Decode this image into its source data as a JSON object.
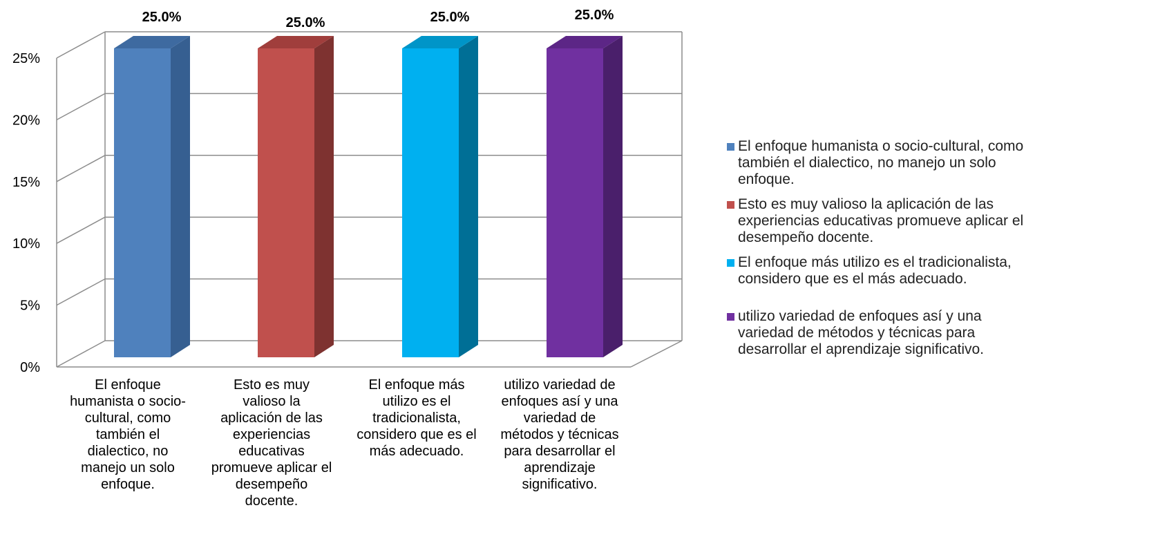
{
  "chart_data": {
    "type": "bar",
    "categories": [
      "El enfoque humanista o socio-cultural, como también el dialectico, no manejo un solo enfoque.",
      "Esto es muy valioso la aplicación de las experiencias educativas promueve aplicar el desempeño docente.",
      "El enfoque más utilizo es el tradicionalista, considero que es el más adecuado.",
      "utilizo variedad de enfoques así y una variedad de métodos y técnicas para desarrollar el aprendizaje significativo."
    ],
    "category_label_lines": [
      [
        "El enfoque",
        "humanista o socio-",
        "cultural, como",
        "también el",
        "dialectico, no",
        "manejo un solo",
        "enfoque."
      ],
      [
        "Esto es muy",
        "valioso la",
        "aplicación de las",
        "experiencias",
        "educativas",
        "promueve aplicar el",
        "desempeño",
        "docente."
      ],
      [
        "El enfoque más",
        "utilizo es el",
        "tradicionalista,",
        "considero que es el",
        "más adecuado."
      ],
      [
        "utilizo variedad de",
        "enfoques así y una",
        "variedad de",
        "métodos y técnicas",
        "para desarrollar el",
        "aprendizaje",
        "significativo."
      ]
    ],
    "values": [
      25.0,
      25.0,
      25.0,
      25.0
    ],
    "data_labels": [
      "25.0%",
      "25.0%",
      "25.0%",
      "25.0%"
    ],
    "colors": [
      "#4F81BD",
      "#C0504D",
      "#00B0F0",
      "#7030A0"
    ],
    "side_colors": [
      "#365F91",
      "#7E3230",
      "#006F96",
      "#4A1F6B"
    ],
    "top_colors": [
      "#3E6AA0",
      "#A03E3C",
      "#0095C8",
      "#5C2686"
    ],
    "yticks": [
      "0%",
      "5%",
      "10%",
      "15%",
      "20%",
      "25%"
    ],
    "ylim": [
      0,
      25
    ],
    "legend": {
      "position": "right",
      "items": [
        [
          "El enfoque humanista o socio-cultural, como",
          "también el dialectico, no manejo un solo",
          "enfoque."
        ],
        [
          "Esto es muy valioso la aplicación de las",
          "experiencias educativas promueve aplicar el",
          "desempeño docente."
        ],
        [
          "El enfoque más utilizo es el tradicionalista,",
          "considero que es el más adecuado."
        ],
        [
          "utilizo variedad de enfoques así y una",
          "variedad de métodos y técnicas para",
          "desarrollar el aprendizaje significativo."
        ]
      ]
    },
    "grid": true,
    "style": "3d-column"
  }
}
